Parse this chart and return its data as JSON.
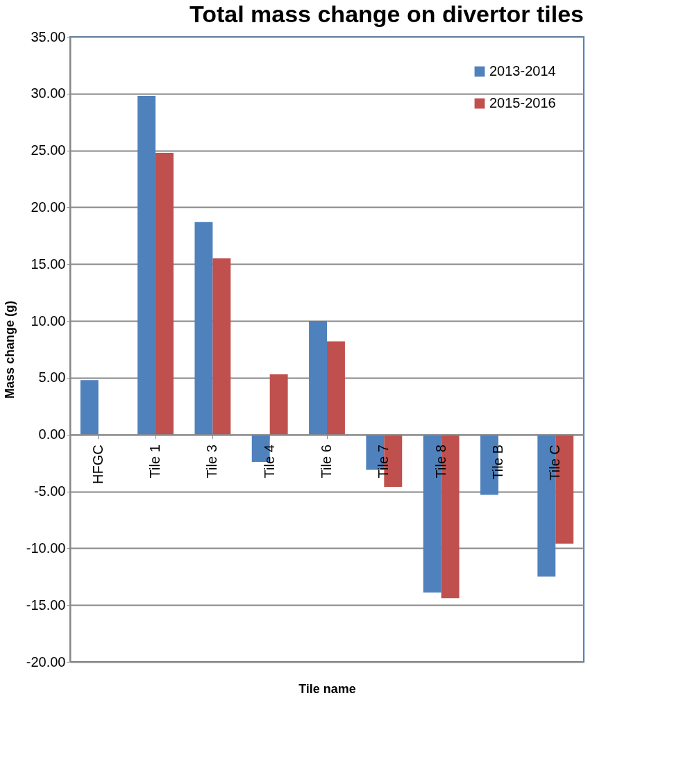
{
  "chart_data": {
    "type": "bar",
    "title": "Total mass change on divertor tiles",
    "xlabel": "Tile name",
    "ylabel": "Mass change (g)",
    "categories": [
      "HFGC",
      "Tile 1",
      "Tile 3",
      "Tile 4",
      "Tile 6",
      "Tile 7",
      "Tile 8",
      "Tile B",
      "Tile C"
    ],
    "series": [
      {
        "name": "2013-2014",
        "color": "#4f81bd",
        "values": [
          4.8,
          29.8,
          18.7,
          -2.4,
          10.0,
          -3.1,
          -13.9,
          -5.3,
          -12.5
        ]
      },
      {
        "name": "2015-2016",
        "color": "#c0504d",
        "values": [
          null,
          24.8,
          15.5,
          5.3,
          8.2,
          -4.6,
          -14.4,
          null,
          -9.6
        ]
      }
    ],
    "ylim": [
      -20,
      35
    ],
    "yticks": [
      {
        "value": -20,
        "label": "-20.00"
      },
      {
        "value": -15,
        "label": "-15.00"
      },
      {
        "value": -10,
        "label": "-10.00"
      },
      {
        "value": -5,
        "label": "-5.00"
      },
      {
        "value": 0,
        "label": "0.00"
      },
      {
        "value": 5,
        "label": "5.00"
      },
      {
        "value": 10,
        "label": "10.00"
      },
      {
        "value": 15,
        "label": "15.00"
      },
      {
        "value": 20,
        "label": "20.00"
      },
      {
        "value": 25,
        "label": "25.00"
      },
      {
        "value": 30,
        "label": "30.00"
      },
      {
        "value": 35,
        "label": "35.00"
      }
    ],
    "grid": "y",
    "legend": "top right"
  }
}
